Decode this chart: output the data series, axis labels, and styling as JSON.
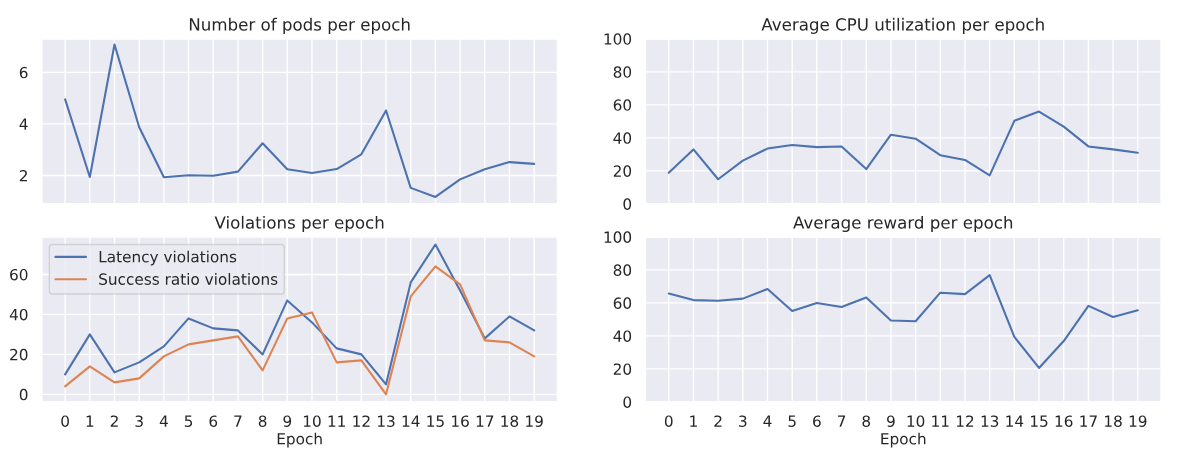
{
  "chart_data": [
    {
      "type": "line",
      "title": "Number of pods per epoch",
      "categories": [
        "0",
        "1",
        "2",
        "3",
        "4",
        "5",
        "6",
        "7",
        "8",
        "9",
        "10",
        "11",
        "12",
        "13",
        "14",
        "15",
        "16",
        "17",
        "18",
        "19"
      ],
      "tick_labels": "y",
      "grid": true,
      "ylim": [
        0.9,
        7.3
      ],
      "yticks": [
        2,
        4,
        6
      ],
      "series": [
        {
          "color": "#4c72b0",
          "values": [
            4.95,
            1.94,
            7.08,
            3.87,
            1.93,
            2.01,
            1.99,
            2.15,
            3.25,
            2.24,
            2.1,
            2.25,
            2.82,
            4.52,
            1.52,
            1.17,
            1.85,
            2.24,
            2.52,
            2.45
          ]
        }
      ]
    },
    {
      "type": "line",
      "title": "Average CPU utilization per epoch",
      "categories": [
        "0",
        "1",
        "2",
        "3",
        "4",
        "5",
        "6",
        "7",
        "8",
        "9",
        "10",
        "11",
        "12",
        "13",
        "14",
        "15",
        "16",
        "17",
        "18",
        "19"
      ],
      "tick_labels": "y",
      "grid": true,
      "ylim": [
        0,
        100
      ],
      "yticks": [
        0,
        20,
        40,
        60,
        80,
        100
      ],
      "series": [
        {
          "color": "#4c72b0",
          "values": [
            18.8,
            33,
            14.9,
            26.2,
            33.5,
            35.7,
            34.4,
            34.8,
            21.1,
            41.9,
            39.5,
            29.5,
            26.6,
            17.3,
            50.3,
            55.9,
            46.8,
            34.8,
            33,
            31
          ]
        }
      ]
    },
    {
      "type": "line",
      "title": "Violations per epoch",
      "xlabel": "Epoch",
      "categories": [
        "0",
        "1",
        "2",
        "3",
        "4",
        "5",
        "6",
        "7",
        "8",
        "9",
        "10",
        "11",
        "12",
        "13",
        "14",
        "15",
        "16",
        "17",
        "18",
        "19"
      ],
      "grid": true,
      "legend": "top left",
      "ylim": [
        -3.8,
        78.8
      ],
      "yticks": [
        0,
        20,
        40,
        60
      ],
      "series": [
        {
          "name": "Latency violations",
          "color": "#4c72b0",
          "values": [
            10,
            30,
            11,
            16,
            24,
            38,
            33,
            32,
            20,
            47,
            36,
            23,
            20,
            5,
            56,
            75,
            52,
            28,
            39,
            32
          ]
        },
        {
          "name": "Success ratio violations",
          "color": "#dd8452",
          "values": [
            4,
            14,
            6,
            8,
            19,
            25,
            27,
            29,
            12,
            38,
            41,
            16,
            17,
            0,
            49,
            64,
            55,
            27,
            26,
            19
          ]
        }
      ]
    },
    {
      "type": "line",
      "title": "Average reward per epoch",
      "xlabel": "Epoch",
      "categories": [
        "0",
        "1",
        "2",
        "3",
        "4",
        "5",
        "6",
        "7",
        "8",
        "9",
        "10",
        "11",
        "12",
        "13",
        "14",
        "15",
        "16",
        "17",
        "18",
        "19"
      ],
      "grid": true,
      "ylim": [
        0,
        100
      ],
      "yticks": [
        0,
        20,
        40,
        60,
        80,
        100
      ],
      "series": [
        {
          "color": "#4c72b0",
          "values": [
            65.7,
            61.7,
            61.3,
            62.6,
            68.4,
            55.1,
            60,
            57.5,
            63.3,
            49.3,
            48.9,
            66.2,
            65.3,
            76.8,
            39.4,
            20.6,
            36.9,
            58.2,
            51.5,
            55.5
          ]
        }
      ]
    }
  ]
}
